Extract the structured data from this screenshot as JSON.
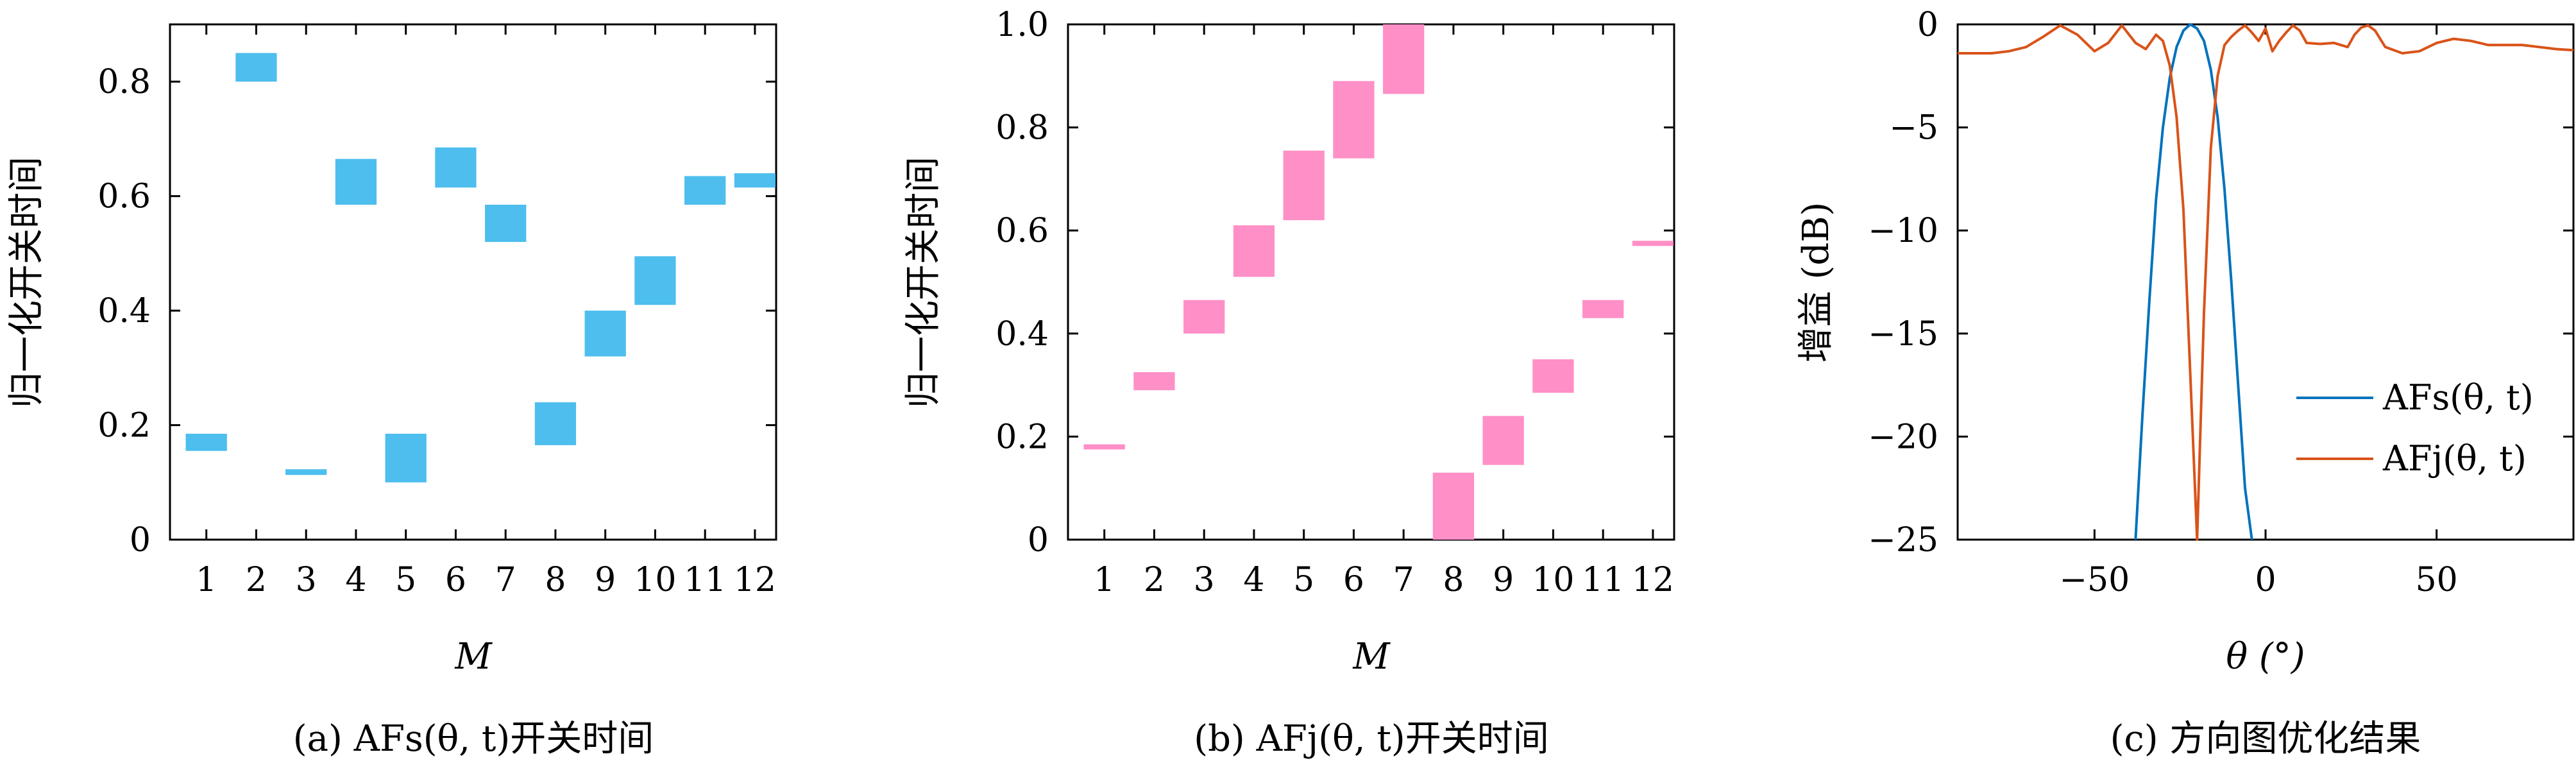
{
  "colors": {
    "blue_bar": "#4DBEEE",
    "pink_bar": "#FF8FC7",
    "line_s": "#0072BD",
    "line_j": "#D95319"
  },
  "chart_data": [
    {
      "type": "bar",
      "id": "a",
      "title": "",
      "caption": "(a) AFs(θ, t)开关时间",
      "xlabel": "M",
      "ylabel": "归一化开关时间",
      "categories": [
        "1",
        "2",
        "3",
        "4",
        "5",
        "6",
        "7",
        "8",
        "9",
        "10",
        "11",
        "12"
      ],
      "ylim": [
        0,
        0.9
      ],
      "yticks": [
        "0",
        "0.2",
        "0.4",
        "0.6",
        "0.8"
      ],
      "ytick_values": [
        0,
        0.2,
        0.4,
        0.6,
        0.8
      ],
      "intervals": [
        [
          0.155,
          0.185
        ],
        [
          0.8,
          0.85
        ],
        [
          0.113,
          0.123
        ],
        [
          0.585,
          0.665
        ],
        [
          0.1,
          0.185
        ],
        [
          0.615,
          0.685
        ],
        [
          0.52,
          0.585
        ],
        [
          0.165,
          0.24
        ],
        [
          0.32,
          0.4
        ],
        [
          0.41,
          0.495
        ],
        [
          0.585,
          0.635
        ],
        [
          0.615,
          0.64
        ]
      ]
    },
    {
      "type": "bar",
      "id": "b",
      "title": "",
      "caption": "(b) AFj(θ, t)开关时间",
      "xlabel": "M",
      "ylabel": "归一化开关时间",
      "categories": [
        "1",
        "2",
        "3",
        "4",
        "5",
        "6",
        "7",
        "8",
        "9",
        "10",
        "11",
        "12"
      ],
      "ylim": [
        0,
        1.0
      ],
      "yticks": [
        "0",
        "0.2",
        "0.4",
        "0.6",
        "0.8",
        "1.0"
      ],
      "ytick_values": [
        0,
        0.2,
        0.4,
        0.6,
        0.8,
        1.0
      ],
      "intervals": [
        [
          0.175,
          0.185
        ],
        [
          0.29,
          0.325
        ],
        [
          0.4,
          0.465
        ],
        [
          0.51,
          0.61
        ],
        [
          0.62,
          0.755
        ],
        [
          0.74,
          0.89
        ],
        [
          0.865,
          1.0
        ],
        [
          0.0,
          0.13
        ],
        [
          0.145,
          0.24
        ],
        [
          0.285,
          0.35
        ],
        [
          0.43,
          0.465
        ],
        [
          0.57,
          0.58
        ]
      ]
    },
    {
      "type": "line",
      "id": "c",
      "title": "",
      "caption": "(c) 方向图优化结果",
      "xlabel": "θ (°)",
      "ylabel": "增益 (dB)",
      "xlim": [
        -90,
        90
      ],
      "ylim": [
        -25,
        0
      ],
      "xticks": [
        "−50",
        "0",
        "50"
      ],
      "xtick_values": [
        -50,
        0,
        50
      ],
      "yticks": [
        "0",
        "−5",
        "−10",
        "−15",
        "−20",
        "−25"
      ],
      "ytick_values": [
        0,
        -5,
        -10,
        -15,
        -20,
        -25
      ],
      "legend": {
        "position": "bottom-right",
        "entries": [
          "AFs(θ, t)",
          "AFj(θ, t)"
        ]
      },
      "series": [
        {
          "name": "AFs(θ, t)",
          "x": [
            -38,
            -36,
            -34,
            -32,
            -30,
            -28,
            -26,
            -24,
            -22,
            -20,
            -18,
            -16,
            -14,
            -12,
            -10,
            -8,
            -6,
            -4
          ],
          "y": [
            -25,
            -19,
            -13.5,
            -8.5,
            -5,
            -2.6,
            -1.1,
            -0.3,
            0,
            -0.2,
            -0.8,
            -2.2,
            -4.5,
            -8,
            -12.5,
            -17.5,
            -22.5,
            -25
          ]
        },
        {
          "name": "AFj(θ, t)",
          "x": [
            -90,
            -85,
            -80,
            -75,
            -70,
            -65,
            -60,
            -55,
            -50,
            -46,
            -42,
            -38,
            -35,
            -32,
            -30,
            -28,
            -26,
            -24,
            -22,
            -20,
            -18,
            -16,
            -14,
            -12,
            -10,
            -8,
            -6,
            -4,
            -2,
            0,
            2,
            4,
            6,
            8,
            10,
            12,
            16,
            20,
            24,
            26,
            28,
            30,
            32,
            35,
            40,
            45,
            50,
            55,
            60,
            65,
            70,
            75,
            80,
            85,
            90
          ],
          "y": [
            -1.4,
            -1.4,
            -1.4,
            -1.3,
            -1.1,
            -0.6,
            -0.05,
            -0.5,
            -1.3,
            -0.9,
            -0.05,
            -0.9,
            -1.2,
            -0.5,
            -0.8,
            -2,
            -4.5,
            -9,
            -17,
            -25,
            -14,
            -6,
            -2.5,
            -1,
            -0.6,
            -0.3,
            -0.05,
            -0.4,
            -0.8,
            -0.2,
            -1.3,
            -0.8,
            -0.4,
            -0.05,
            -0.3,
            -0.9,
            -0.95,
            -0.9,
            -1.1,
            -0.5,
            -0.15,
            -0.05,
            -0.3,
            -1.1,
            -1.4,
            -1.3,
            -0.9,
            -0.7,
            -0.8,
            -1.0,
            -1.0,
            -1.0,
            -1.1,
            -1.2,
            -1.25
          ]
        }
      ]
    }
  ]
}
